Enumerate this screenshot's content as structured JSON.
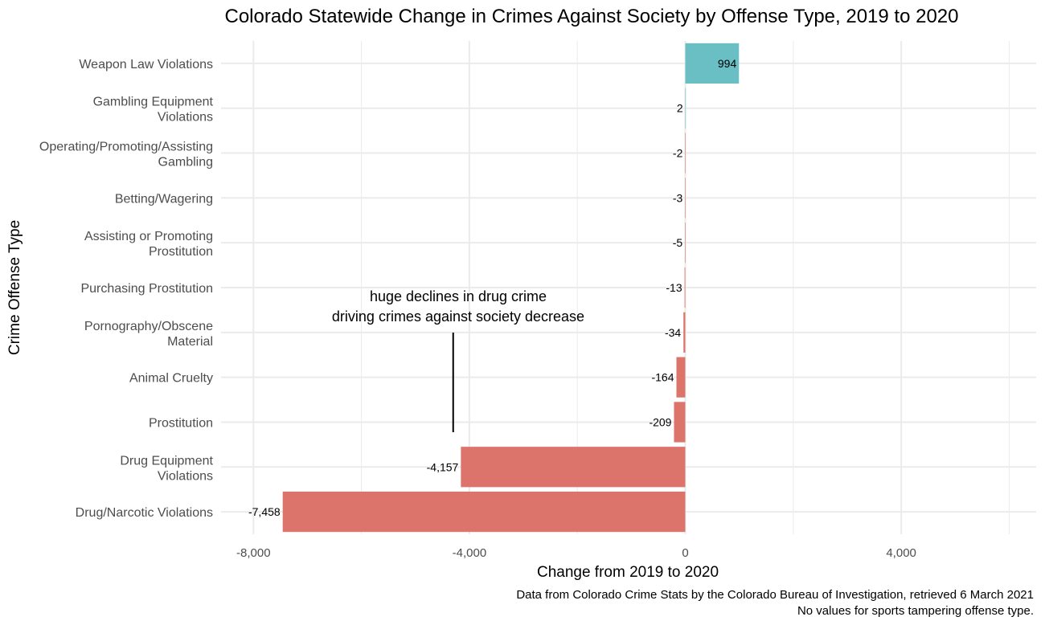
{
  "chart_data": {
    "type": "bar",
    "orientation": "horizontal",
    "title": "Colorado Statewide Change in Crimes Against Society by Offense Type, 2019 to 2020",
    "xlabel": "Change from 2019 to 2020",
    "ylabel": "Crime Offense Type",
    "xlim": [
      -8600,
      6500
    ],
    "x_ticks": [
      -8000,
      -4000,
      0,
      4000
    ],
    "x_tick_labels": [
      "-8,000",
      "-4,000",
      "0",
      "4,000"
    ],
    "grid": true,
    "legend": "none",
    "categories": [
      "Weapon Law Violations",
      "Gambling Equipment Violations",
      "Operating/Promoting/Assisting Gambling",
      "Betting/Wagering",
      "Assisting or Promoting Prostitution",
      "Purchasing Prostitution",
      "Pornography/Obscene Material",
      "Animal Cruelty",
      "Prostitution",
      "Drug Equipment Violations",
      "Drug/Narcotic Violations"
    ],
    "category_label_lines": [
      [
        "Weapon Law Violations"
      ],
      [
        "Gambling Equipment",
        "Violations"
      ],
      [
        "Operating/Promoting/Assisting",
        "Gambling"
      ],
      [
        "Betting/Wagering"
      ],
      [
        "Assisting or Promoting",
        "Prostitution"
      ],
      [
        "Purchasing Prostitution"
      ],
      [
        "Pornography/Obscene",
        "Material"
      ],
      [
        "Animal Cruelty"
      ],
      [
        "Prostitution"
      ],
      [
        "Drug Equipment",
        "Violations"
      ],
      [
        "Drug/Narcotic Violations"
      ]
    ],
    "values": [
      994,
      2,
      -2,
      -3,
      -5,
      -13,
      -34,
      -164,
      -209,
      -4157,
      -7458
    ],
    "value_labels": [
      "994",
      "2",
      "-2",
      "-3",
      "-5",
      "-13",
      "-34",
      "-164",
      "-209",
      "-4,157",
      "-7,458"
    ],
    "colors": {
      "positive": "#69bfc3",
      "negative": "#dd746c",
      "grid": "#ebebeb",
      "text": "#000000",
      "axis_text": "#4d4d4d"
    },
    "annotation": {
      "lines": [
        "huge declines in drug crime",
        "driving crimes against society decrease"
      ],
      "x": -4300
    },
    "caption": [
      "Data from Colorado Crime Stats by the Colorado Bureau of Investigation, retrieved 6 March 2021",
      "No values for sports tampering offense type."
    ]
  }
}
